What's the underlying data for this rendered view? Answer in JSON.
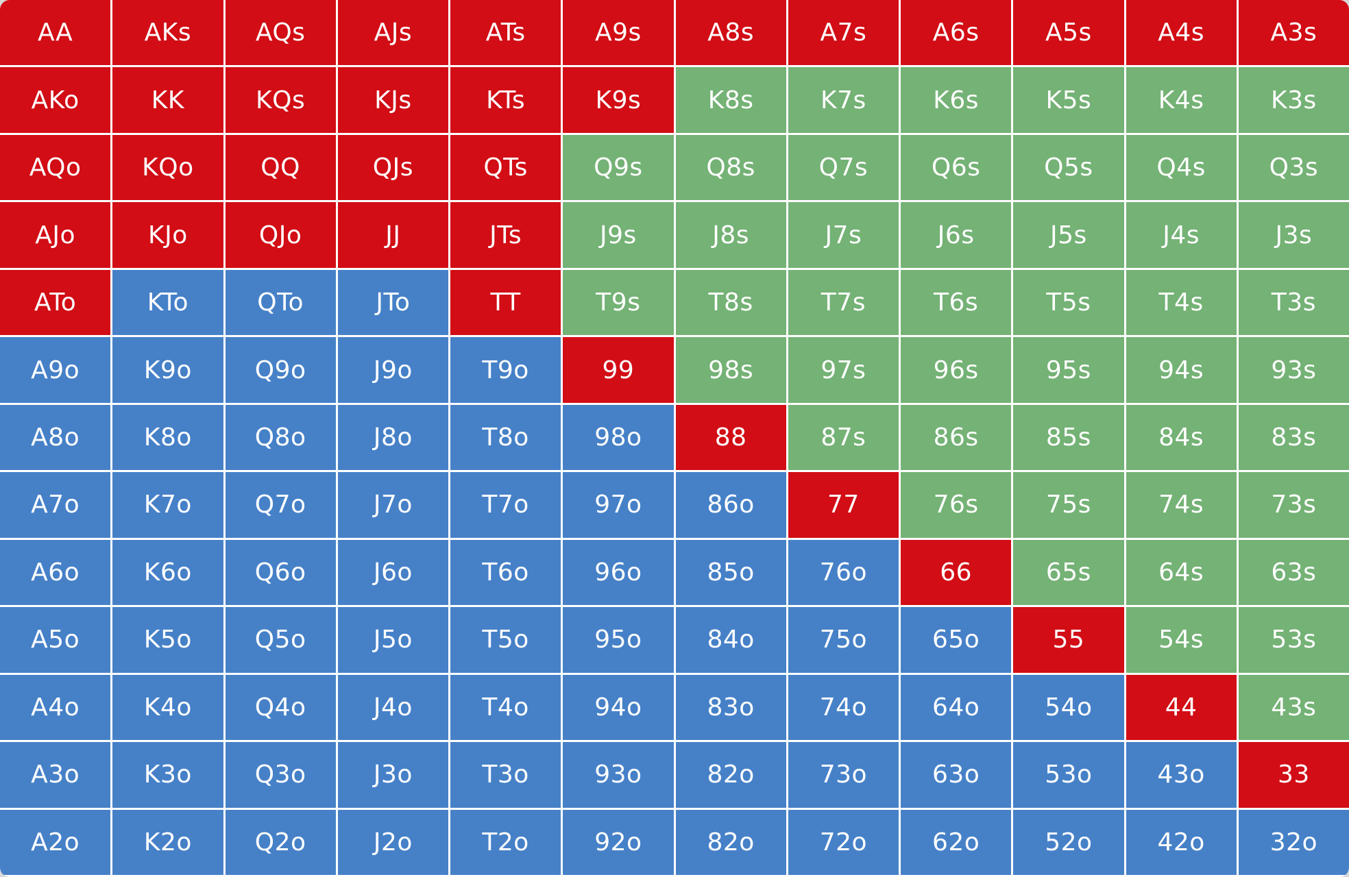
{
  "colors": {
    "red": "#d20d15",
    "green": "#74b275",
    "blue": "#4681c8",
    "grid_line": "#ffffff",
    "page_background": "#d8d8d8",
    "cell_text": "#ffffff"
  },
  "chart_data": {
    "type": "heatmap",
    "description": "Poker preflop hand range matrix, 13 rows by 12 visible columns, cells colored by action category",
    "columns_visible": 12,
    "rows_visible": 13,
    "rows": [
      {
        "cells": [
          {
            "label": "AA",
            "color": "red"
          },
          {
            "label": "AKs",
            "color": "red"
          },
          {
            "label": "AQs",
            "color": "red"
          },
          {
            "label": "AJs",
            "color": "red"
          },
          {
            "label": "ATs",
            "color": "red"
          },
          {
            "label": "A9s",
            "color": "red"
          },
          {
            "label": "A8s",
            "color": "red"
          },
          {
            "label": "A7s",
            "color": "red"
          },
          {
            "label": "A6s",
            "color": "red"
          },
          {
            "label": "A5s",
            "color": "red"
          },
          {
            "label": "A4s",
            "color": "red"
          },
          {
            "label": "A3s",
            "color": "red"
          }
        ]
      },
      {
        "cells": [
          {
            "label": "AKo",
            "color": "red"
          },
          {
            "label": "KK",
            "color": "red"
          },
          {
            "label": "KQs",
            "color": "red"
          },
          {
            "label": "KJs",
            "color": "red"
          },
          {
            "label": "KTs",
            "color": "red"
          },
          {
            "label": "K9s",
            "color": "red"
          },
          {
            "label": "K8s",
            "color": "green"
          },
          {
            "label": "K7s",
            "color": "green"
          },
          {
            "label": "K6s",
            "color": "green"
          },
          {
            "label": "K5s",
            "color": "green"
          },
          {
            "label": "K4s",
            "color": "green"
          },
          {
            "label": "K3s",
            "color": "green"
          }
        ]
      },
      {
        "cells": [
          {
            "label": "AQo",
            "color": "red"
          },
          {
            "label": "KQo",
            "color": "red"
          },
          {
            "label": "QQ",
            "color": "red"
          },
          {
            "label": "QJs",
            "color": "red"
          },
          {
            "label": "QTs",
            "color": "red"
          },
          {
            "label": "Q9s",
            "color": "green"
          },
          {
            "label": "Q8s",
            "color": "green"
          },
          {
            "label": "Q7s",
            "color": "green"
          },
          {
            "label": "Q6s",
            "color": "green"
          },
          {
            "label": "Q5s",
            "color": "green"
          },
          {
            "label": "Q4s",
            "color": "green"
          },
          {
            "label": "Q3s",
            "color": "green"
          }
        ]
      },
      {
        "cells": [
          {
            "label": "AJo",
            "color": "red"
          },
          {
            "label": "KJo",
            "color": "red"
          },
          {
            "label": "QJo",
            "color": "red"
          },
          {
            "label": "JJ",
            "color": "red"
          },
          {
            "label": "JTs",
            "color": "red"
          },
          {
            "label": "J9s",
            "color": "green"
          },
          {
            "label": "J8s",
            "color": "green"
          },
          {
            "label": "J7s",
            "color": "green"
          },
          {
            "label": "J6s",
            "color": "green"
          },
          {
            "label": "J5s",
            "color": "green"
          },
          {
            "label": "J4s",
            "color": "green"
          },
          {
            "label": "J3s",
            "color": "green"
          }
        ]
      },
      {
        "cells": [
          {
            "label": "ATo",
            "color": "red"
          },
          {
            "label": "KTo",
            "color": "blue"
          },
          {
            "label": "QTo",
            "color": "blue"
          },
          {
            "label": "JTo",
            "color": "blue"
          },
          {
            "label": "TT",
            "color": "red"
          },
          {
            "label": "T9s",
            "color": "green"
          },
          {
            "label": "T8s",
            "color": "green"
          },
          {
            "label": "T7s",
            "color": "green"
          },
          {
            "label": "T6s",
            "color": "green"
          },
          {
            "label": "T5s",
            "color": "green"
          },
          {
            "label": "T4s",
            "color": "green"
          },
          {
            "label": "T3s",
            "color": "green"
          }
        ]
      },
      {
        "cells": [
          {
            "label": "A9o",
            "color": "blue"
          },
          {
            "label": "K9o",
            "color": "blue"
          },
          {
            "label": "Q9o",
            "color": "blue"
          },
          {
            "label": "J9o",
            "color": "blue"
          },
          {
            "label": "T9o",
            "color": "blue"
          },
          {
            "label": "99",
            "color": "red"
          },
          {
            "label": "98s",
            "color": "green"
          },
          {
            "label": "97s",
            "color": "green"
          },
          {
            "label": "96s",
            "color": "green"
          },
          {
            "label": "95s",
            "color": "green"
          },
          {
            "label": "94s",
            "color": "green"
          },
          {
            "label": "93s",
            "color": "green"
          }
        ]
      },
      {
        "cells": [
          {
            "label": "A8o",
            "color": "blue"
          },
          {
            "label": "K8o",
            "color": "blue"
          },
          {
            "label": "Q8o",
            "color": "blue"
          },
          {
            "label": "J8o",
            "color": "blue"
          },
          {
            "label": "T8o",
            "color": "blue"
          },
          {
            "label": "98o",
            "color": "blue"
          },
          {
            "label": "88",
            "color": "red"
          },
          {
            "label": "87s",
            "color": "green"
          },
          {
            "label": "86s",
            "color": "green"
          },
          {
            "label": "85s",
            "color": "green"
          },
          {
            "label": "84s",
            "color": "green"
          },
          {
            "label": "83s",
            "color": "green"
          }
        ]
      },
      {
        "cells": [
          {
            "label": "A7o",
            "color": "blue"
          },
          {
            "label": "K7o",
            "color": "blue"
          },
          {
            "label": "Q7o",
            "color": "blue"
          },
          {
            "label": "J7o",
            "color": "blue"
          },
          {
            "label": "T7o",
            "color": "blue"
          },
          {
            "label": "97o",
            "color": "blue"
          },
          {
            "label": "86o",
            "color": "blue"
          },
          {
            "label": "77",
            "color": "red"
          },
          {
            "label": "76s",
            "color": "green"
          },
          {
            "label": "75s",
            "color": "green"
          },
          {
            "label": "74s",
            "color": "green"
          },
          {
            "label": "73s",
            "color": "green"
          }
        ]
      },
      {
        "cells": [
          {
            "label": "A6o",
            "color": "blue"
          },
          {
            "label": "K6o",
            "color": "blue"
          },
          {
            "label": "Q6o",
            "color": "blue"
          },
          {
            "label": "J6o",
            "color": "blue"
          },
          {
            "label": "T6o",
            "color": "blue"
          },
          {
            "label": "96o",
            "color": "blue"
          },
          {
            "label": "85o",
            "color": "blue"
          },
          {
            "label": "76o",
            "color": "blue"
          },
          {
            "label": "66",
            "color": "red"
          },
          {
            "label": "65s",
            "color": "green"
          },
          {
            "label": "64s",
            "color": "green"
          },
          {
            "label": "63s",
            "color": "green"
          }
        ]
      },
      {
        "cells": [
          {
            "label": "A5o",
            "color": "blue"
          },
          {
            "label": "K5o",
            "color": "blue"
          },
          {
            "label": "Q5o",
            "color": "blue"
          },
          {
            "label": "J5o",
            "color": "blue"
          },
          {
            "label": "T5o",
            "color": "blue"
          },
          {
            "label": "95o",
            "color": "blue"
          },
          {
            "label": "84o",
            "color": "blue"
          },
          {
            "label": "75o",
            "color": "blue"
          },
          {
            "label": "65o",
            "color": "blue"
          },
          {
            "label": "55",
            "color": "red"
          },
          {
            "label": "54s",
            "color": "green"
          },
          {
            "label": "53s",
            "color": "green"
          }
        ]
      },
      {
        "cells": [
          {
            "label": "A4o",
            "color": "blue"
          },
          {
            "label": "K4o",
            "color": "blue"
          },
          {
            "label": "Q4o",
            "color": "blue"
          },
          {
            "label": "J4o",
            "color": "blue"
          },
          {
            "label": "T4o",
            "color": "blue"
          },
          {
            "label": "94o",
            "color": "blue"
          },
          {
            "label": "83o",
            "color": "blue"
          },
          {
            "label": "74o",
            "color": "blue"
          },
          {
            "label": "64o",
            "color": "blue"
          },
          {
            "label": "54o",
            "color": "blue"
          },
          {
            "label": "44",
            "color": "red"
          },
          {
            "label": "43s",
            "color": "green"
          }
        ]
      },
      {
        "cells": [
          {
            "label": "A3o",
            "color": "blue"
          },
          {
            "label": "K3o",
            "color": "blue"
          },
          {
            "label": "Q3o",
            "color": "blue"
          },
          {
            "label": "J3o",
            "color": "blue"
          },
          {
            "label": "T3o",
            "color": "blue"
          },
          {
            "label": "93o",
            "color": "blue"
          },
          {
            "label": "82o",
            "color": "blue"
          },
          {
            "label": "73o",
            "color": "blue"
          },
          {
            "label": "63o",
            "color": "blue"
          },
          {
            "label": "53o",
            "color": "blue"
          },
          {
            "label": "43o",
            "color": "blue"
          },
          {
            "label": "33",
            "color": "red"
          }
        ]
      },
      {
        "cells": [
          {
            "label": "A2o",
            "color": "blue"
          },
          {
            "label": "K2o",
            "color": "blue"
          },
          {
            "label": "Q2o",
            "color": "blue"
          },
          {
            "label": "J2o",
            "color": "blue"
          },
          {
            "label": "T2o",
            "color": "blue"
          },
          {
            "label": "92o",
            "color": "blue"
          },
          {
            "label": "82o",
            "color": "blue"
          },
          {
            "label": "72o",
            "color": "blue"
          },
          {
            "label": "62o",
            "color": "blue"
          },
          {
            "label": "52o",
            "color": "blue"
          },
          {
            "label": "42o",
            "color": "blue"
          },
          {
            "label": "32o",
            "color": "blue"
          }
        ]
      }
    ]
  }
}
